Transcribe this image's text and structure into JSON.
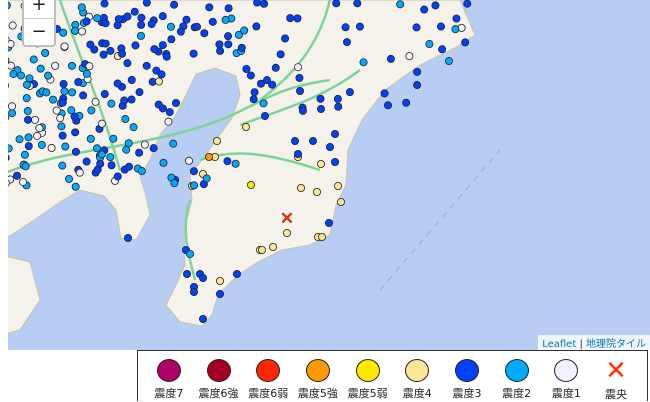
{
  "map": {
    "zoom_in_label": "+",
    "zoom_out_label": "−",
    "attribution": {
      "leaflet": "Leaflet",
      "separator": " | ",
      "tiles": "地理院タイル"
    },
    "epicenter_symbol": "✕"
  },
  "legend": [
    {
      "label": "震度7",
      "color": "#b00068"
    },
    {
      "label": "震度6強",
      "color": "#a50021"
    },
    {
      "label": "震度6弱",
      "color": "#ff2800"
    },
    {
      "label": "震度5強",
      "color": "#ff9900"
    },
    {
      "label": "震度5弱",
      "color": "#ffe600"
    },
    {
      "label": "震度4",
      "color": "#fae696"
    },
    {
      "label": "震度3",
      "color": "#0041ff"
    },
    {
      "label": "震度2",
      "color": "#00aaff"
    },
    {
      "label": "震度1",
      "color": "#f2f2ff"
    },
    {
      "label": "震央",
      "color": "#ff3300",
      "icon": "cross-icon"
    }
  ],
  "colors": {
    "sea": "#b7cdf3",
    "land": "#f4f2ea",
    "road": "#7fd39a"
  }
}
